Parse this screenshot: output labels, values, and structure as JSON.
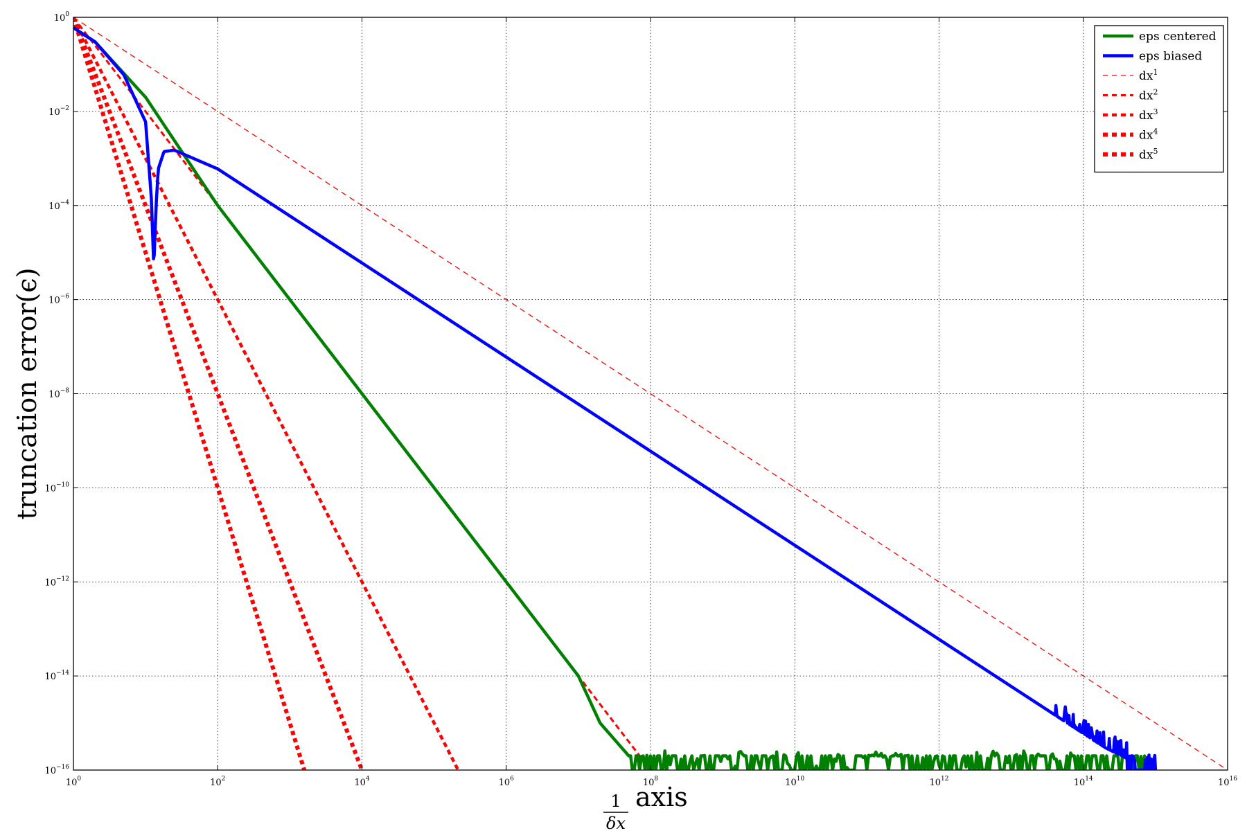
{
  "chart_data": {
    "type": "line",
    "xscale": "log",
    "yscale": "log",
    "xlim": [
      1,
      1e+16
    ],
    "ylim": [
      1e-16,
      1
    ],
    "grid": true,
    "legend_position": "top-right",
    "xlabel": "1/δx axis",
    "ylabel": "truncation error(ϵ)",
    "x_ticks": [
      {
        "base": "10",
        "exp": "0"
      },
      {
        "base": "10",
        "exp": "2"
      },
      {
        "base": "10",
        "exp": "4"
      },
      {
        "base": "10",
        "exp": "6"
      },
      {
        "base": "10",
        "exp": "8"
      },
      {
        "base": "10",
        "exp": "10"
      },
      {
        "base": "10",
        "exp": "12"
      },
      {
        "base": "10",
        "exp": "14"
      },
      {
        "base": "10",
        "exp": "16"
      }
    ],
    "y_ticks": [
      {
        "base": "10",
        "exp": "0"
      },
      {
        "base": "10",
        "exp": "−2"
      },
      {
        "base": "10",
        "exp": "−4"
      },
      {
        "base": "10",
        "exp": "−6"
      },
      {
        "base": "10",
        "exp": "−8"
      },
      {
        "base": "10",
        "exp": "−10"
      },
      {
        "base": "10",
        "exp": "−12"
      },
      {
        "base": "10",
        "exp": "−14"
      },
      {
        "base": "10",
        "exp": "−16"
      }
    ],
    "series": [
      {
        "name": "eps centered",
        "color": "#008000",
        "style": "solid",
        "x": [
          1,
          2,
          10,
          100,
          10000,
          1000000.0,
          10000000.0,
          20000000.0,
          50000000.0,
          100000000.0,
          10000000000.0,
          1000000000000.0,
          100000000000000.0,
          1000000000000000.0
        ],
        "y": [
          0.6,
          0.3,
          0.02,
          0.0001,
          1e-08,
          1e-12,
          1e-14,
          1e-15,
          2e-16,
          1.5e-16,
          1.5e-16,
          1.5e-16,
          1.5e-16,
          1.5e-16
        ],
        "noise_floor": {
          "x_start": 50000000.0,
          "x_end": 1000000000000000.0,
          "y_min": 1e-16,
          "y_max": 2e-16
        }
      },
      {
        "name": "eps biased",
        "color": "#0000ff",
        "style": "solid",
        "x": [
          1,
          2,
          5,
          10,
          12,
          13,
          14,
          15,
          18,
          25,
          100,
          10000,
          1000000.0,
          100000000.0,
          10000000000.0,
          1000000000000.0,
          100000000000000.0,
          200000000000000.0,
          500000000000000.0,
          1000000000000000.0
        ],
        "y": [
          0.6,
          0.3,
          0.06,
          0.006,
          0.00015,
          5e-06,
          0.0001,
          0.0006,
          0.0014,
          0.0015,
          0.0006,
          6e-06,
          6e-08,
          6e-10,
          6e-12,
          6e-14,
          6e-16,
          3e-16,
          1.5e-16,
          1.5e-16
        ]
      },
      {
        "name": "dx¹",
        "color": "#ff0000",
        "style": "dashed",
        "order": 1,
        "coef": 1
      },
      {
        "name": "dx²",
        "color": "#ff0000",
        "style": "dashed",
        "order": 2,
        "coef": 1
      },
      {
        "name": "dx³",
        "color": "#ff0000",
        "style": "dashed",
        "order": 3,
        "coef": 1
      },
      {
        "name": "dx⁴",
        "color": "#ff0000",
        "style": "dashed",
        "order": 4,
        "coef": 1
      },
      {
        "name": "dx⁵",
        "color": "#ff0000",
        "style": "dashed",
        "order": 5,
        "coef": 1
      }
    ],
    "legend": [
      {
        "label": "eps",
        "suffix": " centered",
        "color": "#008000",
        "style": "solid"
      },
      {
        "label": "eps",
        "suffix": " biased",
        "color": "#0000ff",
        "style": "solid"
      },
      {
        "label": "dx",
        "sup": "1",
        "color": "#ff0000",
        "style": "dashed"
      },
      {
        "label": "dx",
        "sup": "2",
        "color": "#ff0000",
        "style": "dashed"
      },
      {
        "label": "dx",
        "sup": "3",
        "color": "#ff0000",
        "style": "dashed"
      },
      {
        "label": "dx",
        "sup": "4",
        "color": "#ff0000",
        "style": "dashed"
      },
      {
        "label": "dx",
        "sup": "5",
        "color": "#ff0000",
        "style": "dashed"
      }
    ]
  }
}
